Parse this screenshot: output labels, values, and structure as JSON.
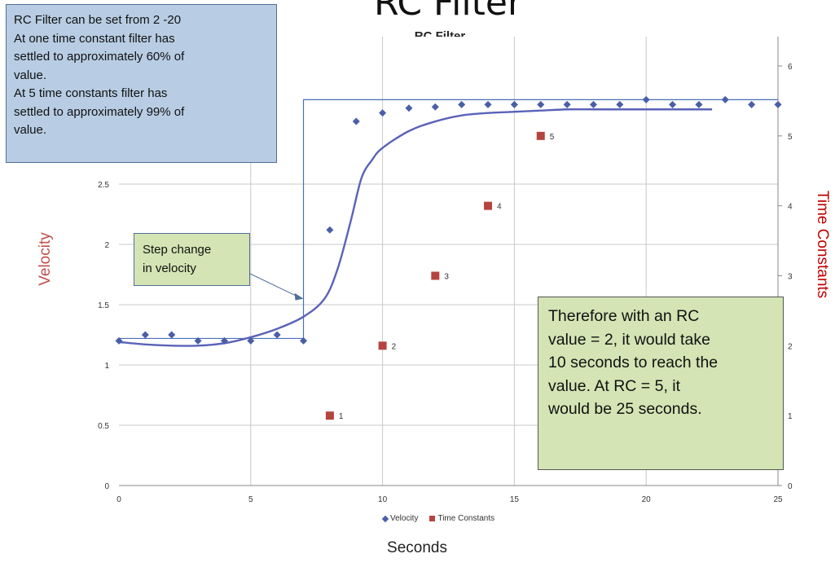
{
  "slide": {
    "title": "RC Filter"
  },
  "callouts": {
    "info_lines": [
      "RC Filter can be set from 2 -20",
      "At one time constant filter has",
      "settled to approximately 60% of",
      "value.",
      "At 5 time constants filter has",
      "settled to approximately 99% of",
      "value."
    ],
    "step_lines": [
      "Step change",
      "in velocity"
    ],
    "therefore_lines": [
      "Therefore with an RC",
      "value = 2, it would take",
      "10 seconds to reach the",
      "value. At RC = 5, it",
      "would be 25 seconds."
    ]
  },
  "chart_data": {
    "type": "scatter",
    "title": "RC Filter",
    "xlabel": "Seconds",
    "ylabel": "Velocity",
    "y2label": "Time Constants",
    "xlim": [
      0,
      25
    ],
    "ylim": [
      0,
      3.0
    ],
    "y2lim": [
      0,
      6
    ],
    "x_ticks": [
      0,
      5,
      10,
      15,
      20,
      25
    ],
    "y_ticks": [
      "0",
      "0.5",
      "1",
      "1.5",
      "2",
      "2.5"
    ],
    "y2_ticks": [
      0,
      1,
      2,
      3,
      4,
      5,
      6
    ],
    "grid": true,
    "legend_position": "bottom",
    "series": [
      {
        "name": "Velocity",
        "marker": "diamond",
        "color": "#4a5fa8",
        "points": [
          [
            0,
            1.2
          ],
          [
            1,
            1.25
          ],
          [
            2,
            1.25
          ],
          [
            3,
            1.2
          ],
          [
            4,
            1.2
          ],
          [
            5,
            1.2
          ],
          [
            6,
            1.25
          ],
          [
            7,
            1.2
          ],
          [
            8,
            2.12
          ],
          [
            9,
            3.02
          ],
          [
            10,
            3.09
          ],
          [
            11,
            3.13
          ],
          [
            12,
            3.14
          ],
          [
            13,
            3.16
          ],
          [
            14,
            3.16
          ],
          [
            15,
            3.16
          ],
          [
            16,
            3.16
          ],
          [
            17,
            3.16
          ],
          [
            18,
            3.16
          ],
          [
            19,
            3.16
          ],
          [
            20,
            3.2
          ],
          [
            21,
            3.16
          ],
          [
            22,
            3.16
          ],
          [
            23,
            3.2
          ],
          [
            24,
            3.16
          ],
          [
            25,
            3.16
          ]
        ]
      },
      {
        "name": "Time Constants",
        "marker": "square",
        "color": "#b5443e",
        "axis": "right",
        "points": [
          [
            8,
            1
          ],
          [
            10,
            2
          ],
          [
            12,
            3
          ],
          [
            14,
            4
          ],
          [
            16,
            5
          ]
        ],
        "labels": [
          "1",
          "2",
          "3",
          "4",
          "5"
        ]
      }
    ],
    "filtered_curve": {
      "color": "#5a62b8",
      "points": [
        [
          0,
          1.19
        ],
        [
          1,
          1.17
        ],
        [
          2,
          1.16
        ],
        [
          3,
          1.16
        ],
        [
          4,
          1.18
        ],
        [
          5,
          1.23
        ],
        [
          6,
          1.3
        ],
        [
          7,
          1.4
        ],
        [
          7.8,
          1.55
        ],
        [
          8.3,
          1.8
        ],
        [
          8.8,
          2.2
        ],
        [
          9.2,
          2.55
        ],
        [
          9.6,
          2.7
        ],
        [
          10,
          2.8
        ],
        [
          11,
          2.94
        ],
        [
          12,
          3.02
        ],
        [
          13,
          3.07
        ],
        [
          14,
          3.09
        ],
        [
          15,
          3.1
        ],
        [
          16,
          3.11
        ],
        [
          17,
          3.12
        ],
        [
          18,
          3.12
        ],
        [
          19,
          3.12
        ],
        [
          20,
          3.12
        ],
        [
          21,
          3.12
        ],
        [
          22.5,
          3.12
        ]
      ]
    },
    "step_line": {
      "color": "#4a6fb8",
      "points": [
        [
          0,
          1.22
        ],
        [
          7,
          1.22
        ],
        [
          7,
          3.2
        ],
        [
          25,
          3.2
        ]
      ]
    }
  }
}
